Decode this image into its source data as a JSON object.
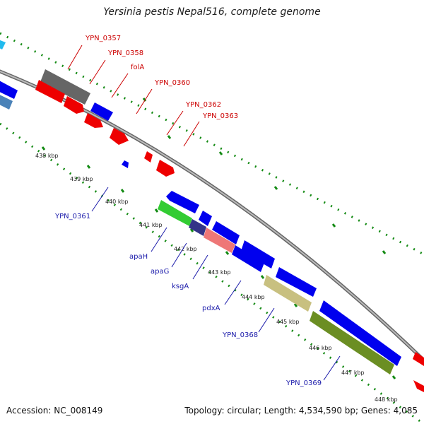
{
  "title": "Yersinia pestis Nepal516, complete genome",
  "footer": {
    "accession": "Accession: NC_008149",
    "topology": "Topology: circular; Length: 4,534,590 bp; Genes: 4,085"
  },
  "colors": {
    "backbone": "#888888",
    "tick": "#138a13",
    "forward_label": "#cc0000",
    "reverse_label": "#1a1aaa"
  },
  "tick_labels": [
    "438 kbp",
    "439 kbp",
    "440 kbp",
    "441 kbp",
    "442 kbp",
    "443 kbp",
    "444 kbp",
    "445 kbp",
    "446 kbp",
    "447 kbp",
    "448 kbp"
  ],
  "forward_genes": [
    "YPN_0357",
    "YPN_0358",
    "folA",
    "YPN_0360",
    "YPN_0362",
    "YPN_0363"
  ],
  "reverse_genes": [
    "YPN_0361",
    "apaH",
    "apaG",
    "ksgA",
    "pdxA",
    "YPN_0368",
    "YPN_0369"
  ],
  "feature_colors": {
    "blue": "#0000ee",
    "red": "#ee0000",
    "grey": "#666666",
    "green": "#33cc33",
    "navy": "#333388",
    "pink": "#ee7777",
    "khaki": "#c8c080",
    "olive": "#6b8e23",
    "steel": "#4a82b8",
    "cyan": "#22bbee"
  }
}
